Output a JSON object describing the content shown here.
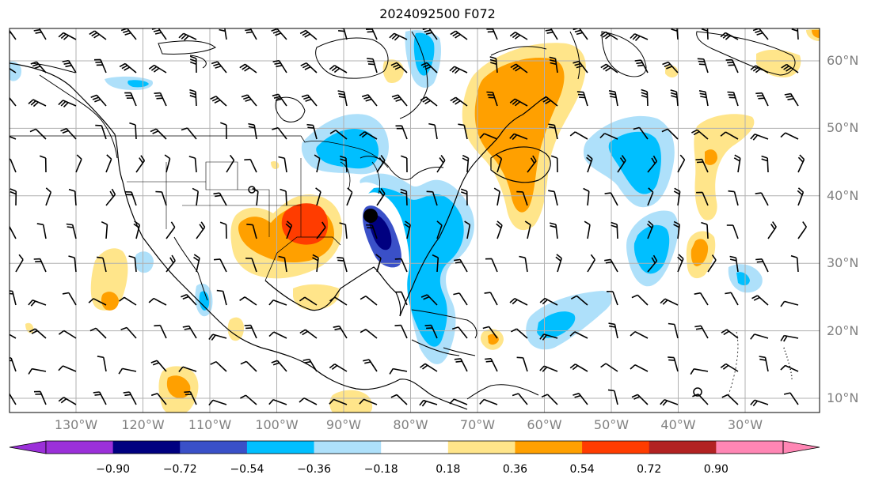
{
  "title": "2024092500 F072",
  "lon_labels": [
    "130°W",
    "120°W",
    "110°W",
    "100°W",
    "90°W",
    "80°W",
    "70°W",
    "60°W",
    "50°W",
    "40°W",
    "30°W"
  ],
  "lat_labels": [
    "60°N",
    "50°N",
    "40°N",
    "30°N",
    "20°N",
    "10°N"
  ],
  "colorbar": {
    "ticks": [
      "−0.90",
      "−0.72",
      "−0.54",
      "−0.36",
      "−0.18",
      "0.18",
      "0.36",
      "0.54",
      "0.72",
      "0.90"
    ],
    "colors": [
      "#9b30d9",
      "#000080",
      "#3a50c8",
      "#00bfff",
      "#aee0fa",
      "#ffffff",
      "#ffe58a",
      "#ffa000",
      "#ff3c00",
      "#b22222",
      "#ff86b4"
    ]
  },
  "markers": [
    {
      "type": "filled-dot",
      "lat": 37,
      "lon": -86
    },
    {
      "type": "open-circle",
      "lat": 42,
      "lon": -101
    },
    {
      "type": "open-circle",
      "lat": 11,
      "lon": -41
    }
  ]
}
